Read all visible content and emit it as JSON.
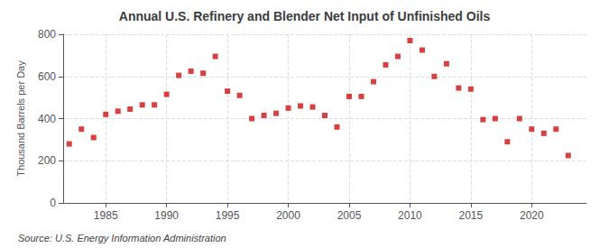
{
  "chart_data": {
    "type": "scatter",
    "title": "Annual U.S. Refinery and Blender Net Input of Unfinished Oils",
    "ylabel": "Thousand Barrels per Day",
    "annotations": [
      "Source: U.S. Energy Information Administration"
    ],
    "x": [
      1982,
      1983,
      1984,
      1985,
      1986,
      1987,
      1988,
      1989,
      1990,
      1991,
      1992,
      1993,
      1994,
      1995,
      1996,
      1997,
      1998,
      1999,
      2000,
      2001,
      2002,
      2003,
      2004,
      2005,
      2006,
      2007,
      2008,
      2009,
      2010,
      2011,
      2012,
      2013,
      2014,
      2015,
      2016,
      2017,
      2018,
      2019,
      2020,
      2021,
      2022,
      2023
    ],
    "values": [
      280,
      350,
      310,
      420,
      435,
      445,
      465,
      465,
      515,
      605,
      625,
      615,
      695,
      530,
      510,
      400,
      415,
      425,
      450,
      460,
      455,
      415,
      360,
      505,
      505,
      575,
      655,
      695,
      770,
      725,
      600,
      660,
      545,
      540,
      395,
      400,
      290,
      400,
      350,
      330,
      350,
      225
    ],
    "color": "#cc1111",
    "marker": "square",
    "xlim": [
      1981.5,
      2024.5
    ],
    "xticks": [
      1985,
      1990,
      1995,
      2000,
      2005,
      2010,
      2015,
      2020
    ],
    "ylim": [
      0,
      800
    ],
    "yticks": [
      0,
      200,
      400,
      600,
      800
    ],
    "grid": true
  }
}
